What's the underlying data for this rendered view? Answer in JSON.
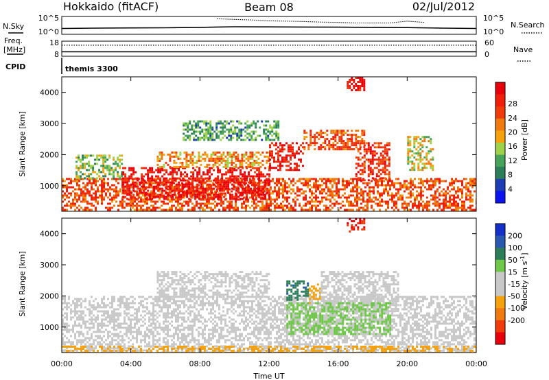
{
  "header": {
    "station": "Hokkaido (fitACF)",
    "beam": "Beam 08",
    "date": "02/Jul/2012"
  },
  "noise_panel": {
    "left_label": "N.Sky",
    "right_label": "N.Search",
    "left_ticks": [
      "10^5",
      "10^0"
    ],
    "right_ticks": [
      "10^5",
      "10^0"
    ]
  },
  "freq_panel": {
    "left_label_1": "Freq.",
    "left_label_2": "[MHz]",
    "right_label": "Nave",
    "left_ticks": [
      "18",
      "8"
    ],
    "right_ticks": [
      "60",
      "0"
    ]
  },
  "cpid": {
    "label": "CPID",
    "mode": "themis 3300"
  },
  "time_axis": {
    "label": "Time UT",
    "ticks": [
      "00:00",
      "04:00",
      "08:00",
      "12:00",
      "16:00",
      "20:00",
      "00:00"
    ]
  },
  "chart_data": [
    {
      "type": "line",
      "panel": "noise",
      "x_unit": "hours UT",
      "xlim": [
        0,
        24
      ],
      "yscale": "log",
      "series": [
        {
          "name": "N.Sky",
          "style": "solid",
          "x": [
            0,
            2,
            4,
            6,
            8,
            9,
            10,
            12,
            14,
            16,
            18,
            20,
            22,
            24
          ],
          "y": [
            30,
            40,
            45,
            50,
            70,
            90,
            110,
            100,
            90,
            80,
            70,
            60,
            40,
            30
          ]
        },
        {
          "name": "N.Search",
          "style": "dotted",
          "x": [
            9,
            10,
            11,
            12,
            13,
            14,
            15,
            16,
            17,
            19,
            20,
            21
          ],
          "y": [
            50000,
            30000,
            20000,
            10000,
            8000,
            6000,
            4000,
            3000,
            2000,
            2000,
            8000,
            3000
          ]
        }
      ]
    },
    {
      "type": "line",
      "panel": "frequency",
      "x_unit": "hours UT",
      "xlim": [
        0,
        24
      ],
      "series": [
        {
          "name": "Freq.",
          "style": "solid",
          "x": [
            0,
            24
          ],
          "y": [
            10.5,
            10.5
          ]
        },
        {
          "name": "Nave",
          "style": "dotted",
          "x": [
            0,
            24
          ],
          "y": [
            47,
            47
          ]
        }
      ]
    },
    {
      "type": "heatmap",
      "quantity": "Power",
      "ylabel": "Slant Range [km]",
      "xlabel": "Time UT",
      "xlim": [
        0,
        24
      ],
      "ylim": [
        180,
        4500
      ],
      "yticks": [
        "1000",
        "2000",
        "3000",
        "4000"
      ],
      "colorbar": {
        "label": "Power [dB]",
        "ticks": [
          "4",
          "8",
          "12",
          "16",
          "20",
          "24",
          "28"
        ],
        "colors": [
          "#0a14f0",
          "#1e3cb4",
          "#2e7d5a",
          "#47a35a",
          "#9fd24b",
          "#f5a20e",
          "#f07a10",
          "#f03c0a",
          "#f01e0a",
          "#e8000a"
        ]
      },
      "echo_regions": [
        {
          "t_start": 0.0,
          "t_end": 24.0,
          "r_start": 200,
          "r_end": 1250,
          "level": 22
        },
        {
          "t_start": 0.8,
          "t_end": 3.5,
          "r_start": 1250,
          "r_end": 2000,
          "level": 12
        },
        {
          "t_start": 3.5,
          "t_end": 12.0,
          "r_start": 600,
          "r_end": 1600,
          "level": 27
        },
        {
          "t_start": 5.5,
          "t_end": 12.0,
          "r_start": 1600,
          "r_end": 2100,
          "level": 18
        },
        {
          "t_start": 12.0,
          "t_end": 14.0,
          "r_start": 1500,
          "r_end": 2400,
          "level": 26
        },
        {
          "t_start": 14.0,
          "t_end": 17.5,
          "r_start": 2200,
          "r_end": 2800,
          "level": 22
        },
        {
          "t_start": 17.0,
          "t_end": 19.0,
          "r_start": 1200,
          "r_end": 2400,
          "level": 24
        },
        {
          "t_start": 20.0,
          "t_end": 21.5,
          "r_start": 1500,
          "r_end": 2600,
          "level": 15
        },
        {
          "t_start": 7.0,
          "t_end": 12.5,
          "r_start": 2500,
          "r_end": 3100,
          "level": 10
        },
        {
          "t_start": 16.5,
          "t_end": 17.5,
          "r_start": 4100,
          "r_end": 4500,
          "level": 28
        }
      ]
    },
    {
      "type": "heatmap",
      "quantity": "Velocity",
      "ylabel": "Slant Range [km]",
      "xlabel": "Time UT",
      "xlim": [
        0,
        24
      ],
      "ylim": [
        180,
        4500
      ],
      "yticks": [
        "1000",
        "2000",
        "3000",
        "4000"
      ],
      "colorbar": {
        "label": "Velocity [m s^-1]",
        "ticks": [
          "200",
          "100",
          "50",
          "15",
          "-15",
          "-50",
          "-100",
          "-200"
        ],
        "colors": [
          "#1430c8",
          "#2858b0",
          "#2e7d5a",
          "#70c84b",
          "#c8c8c8",
          "#c8c8c8",
          "#f5a20e",
          "#f07a10",
          "#f03c0a",
          "#e8000a"
        ]
      },
      "echo_regions": [
        {
          "t_start": 0.0,
          "t_end": 24.0,
          "r_start": 200,
          "r_end": 2000,
          "velocity": 0
        },
        {
          "t_start": 5.5,
          "t_end": 12.0,
          "r_start": 2000,
          "r_end": 2800,
          "velocity": 0
        },
        {
          "t_start": 13.0,
          "t_end": 14.3,
          "r_start": 1900,
          "r_end": 2500,
          "velocity": 70
        },
        {
          "t_start": 14.3,
          "t_end": 15.0,
          "r_start": 1800,
          "r_end": 2400,
          "velocity": -60
        },
        {
          "t_start": 15.0,
          "t_end": 19.5,
          "r_start": 1500,
          "r_end": 2800,
          "velocity": 0
        },
        {
          "t_start": 13.0,
          "t_end": 19.0,
          "r_start": 800,
          "r_end": 1800,
          "velocity": 25
        },
        {
          "t_start": 0.0,
          "t_end": 24.0,
          "r_start": 200,
          "r_end": 400,
          "velocity": -60
        },
        {
          "t_start": 16.5,
          "t_end": 17.5,
          "r_start": 4100,
          "r_end": 4500,
          "velocity": -200
        }
      ]
    }
  ]
}
